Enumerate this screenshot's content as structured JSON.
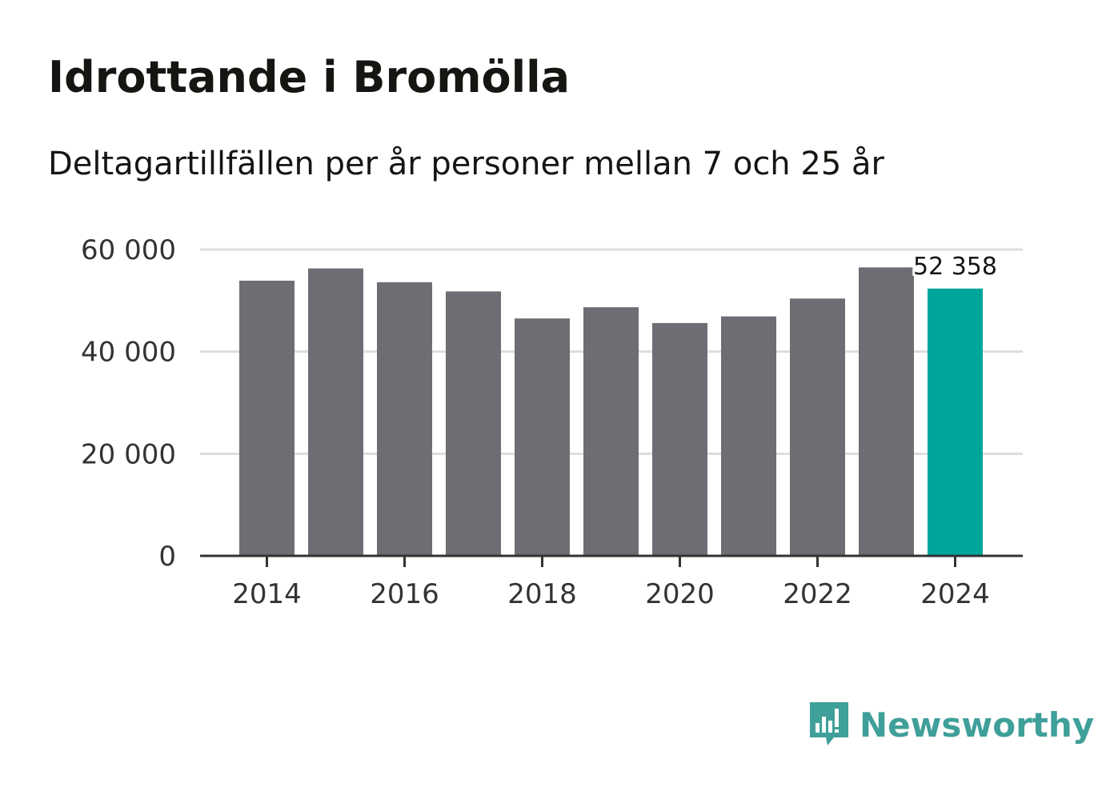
{
  "header": {
    "title": "Idrottande i Bromölla",
    "subtitle": "Deltagartillfällen per år personer mellan 7 och 25 år"
  },
  "brand": {
    "name": "Newsworthy",
    "icon": "newsworthy-chart-icon",
    "color": "#3f9f99"
  },
  "colors": {
    "bar": "#6e6d73",
    "highlight": "#00a69c",
    "grid": "#dddddd",
    "axis": "#333333"
  },
  "chart_data": {
    "type": "bar",
    "title": "Idrottande i Bromölla",
    "subtitle": "Deltagartillfällen per år personer mellan 7 och 25 år",
    "categories": [
      "2014",
      "2015",
      "2016",
      "2017",
      "2018",
      "2019",
      "2020",
      "2021",
      "2022",
      "2023",
      "2024"
    ],
    "values": [
      53900,
      56300,
      53600,
      51800,
      46500,
      48700,
      45600,
      46900,
      50400,
      56500,
      52358
    ],
    "highlight_index": 10,
    "highlight_label": "52 358",
    "x_tick_labels": [
      "2014",
      "",
      "2016",
      "",
      "2018",
      "",
      "2020",
      "",
      "2022",
      "",
      "2024"
    ],
    "y_ticks": [
      0,
      20000,
      40000,
      60000
    ],
    "y_tick_labels": [
      "0",
      "20 000",
      "40 000",
      "60 000"
    ],
    "ylim": [
      0,
      60000
    ],
    "xlabel": "",
    "ylabel": "",
    "grid": true,
    "legend": "none"
  }
}
